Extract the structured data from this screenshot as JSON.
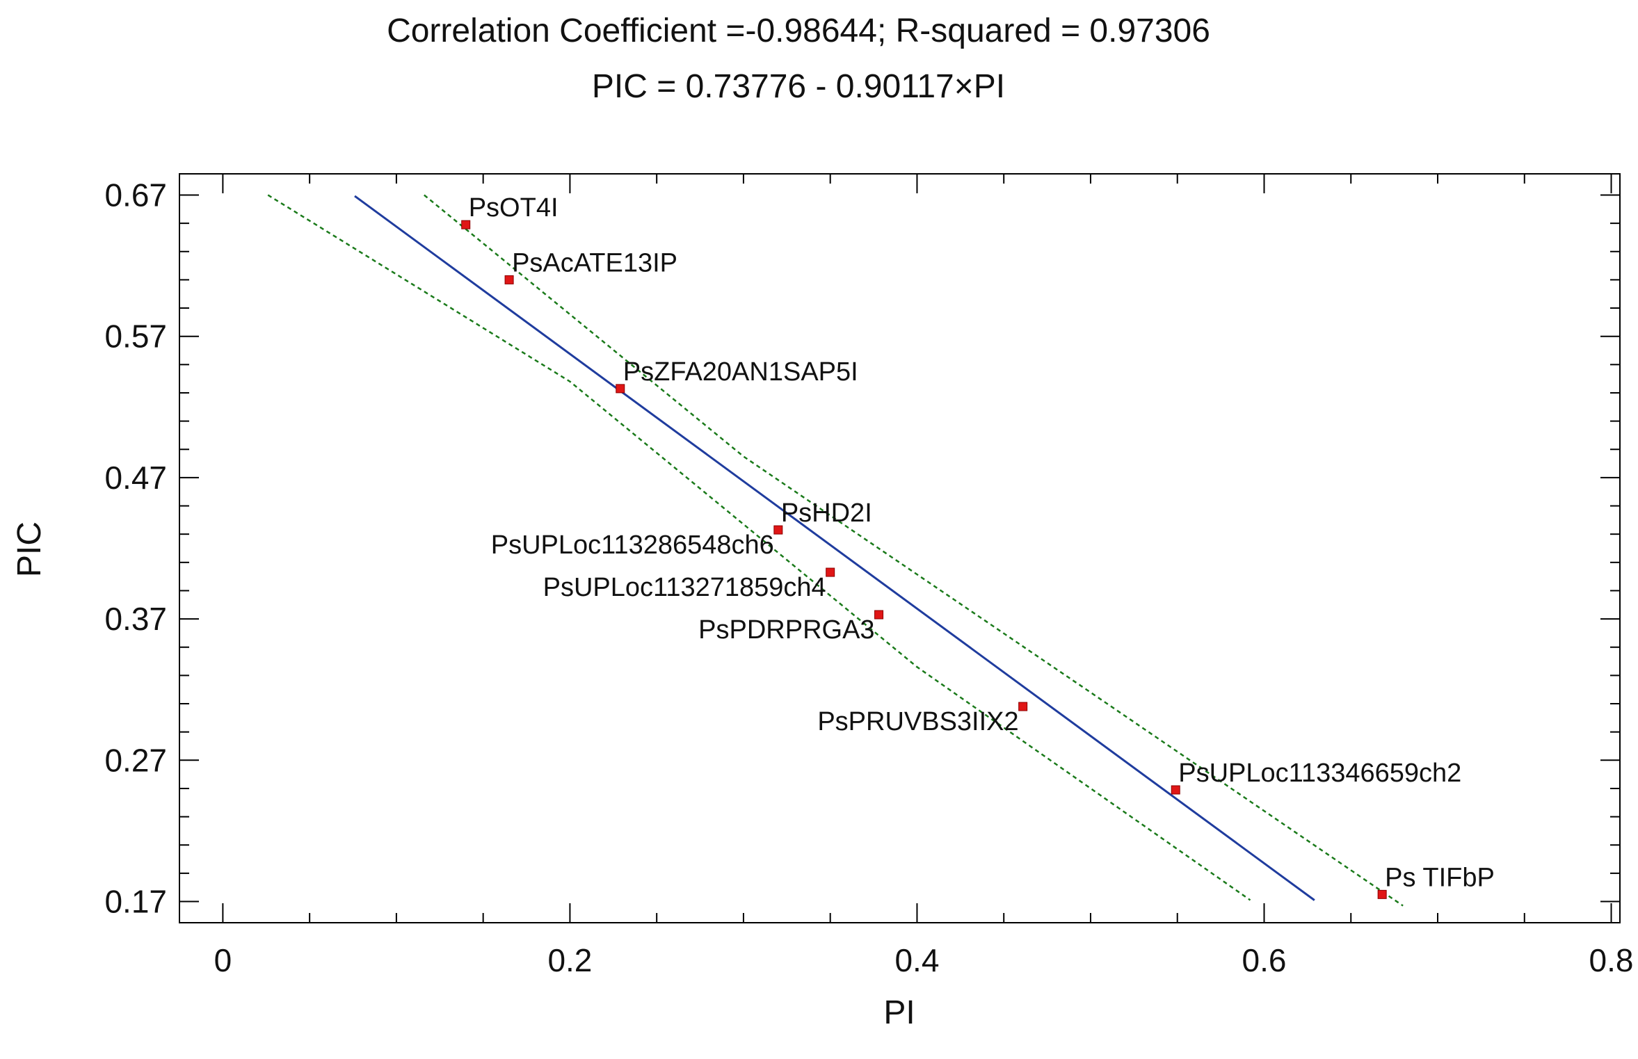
{
  "chart_data": {
    "type": "scatter",
    "title": "Correlation Coefficient =-0.98644; R-squared = 0.97306",
    "subtitle": "PIC = 0.73776 - 0.90117×PI",
    "xlabel": "PI",
    "ylabel": "PIC",
    "xlim": [
      -0.025,
      0.805
    ],
    "ylim": [
      0.155,
      0.685
    ],
    "xticks": [
      {
        "value": 0,
        "label": "0"
      },
      {
        "value": 0.2,
        "label": "0.2"
      },
      {
        "value": 0.4,
        "label": "0.4"
      },
      {
        "value": 0.6,
        "label": "0.6"
      },
      {
        "value": 0.8,
        "label": "0.8"
      }
    ],
    "yticks": [
      {
        "value": 0.17,
        "label": "0.17"
      },
      {
        "value": 0.27,
        "label": "0.27"
      },
      {
        "value": 0.37,
        "label": "0.37"
      },
      {
        "value": 0.47,
        "label": "0.47"
      },
      {
        "value": 0.57,
        "label": "0.57"
      },
      {
        "value": 0.67,
        "label": "0.67"
      }
    ],
    "x_minor_step": 0.05,
    "y_minor_step": 0.02,
    "grid": false,
    "points": [
      {
        "label": "PsOT4I",
        "x": 0.14,
        "y": 0.649,
        "label_pos": "above-right"
      },
      {
        "label": "PsAcATE13IP",
        "x": 0.165,
        "y": 0.61,
        "label_pos": "above-right"
      },
      {
        "label": "PsZFA20AN1SAP5I",
        "x": 0.229,
        "y": 0.533,
        "label_pos": "above-right"
      },
      {
        "label": "PsHD2I",
        "x": 0.32,
        "y": 0.433,
        "label_pos": "above-right"
      },
      {
        "label": "PsUPLoc113286548ch6",
        "x": 0.32,
        "y": 0.433,
        "label_pos": "below-left"
      },
      {
        "label": "PsUPLoc113271859ch4",
        "x": 0.35,
        "y": 0.403,
        "label_pos": "below-left"
      },
      {
        "label": "PsPDRPRGA3",
        "x": 0.378,
        "y": 0.373,
        "label_pos": "below-left"
      },
      {
        "label": "PsPRUVBS3IIX2",
        "x": 0.461,
        "y": 0.308,
        "label_pos": "below-left"
      },
      {
        "label": "PsUPLoc113346659ch2",
        "x": 0.549,
        "y": 0.249,
        "label_pos": "above-right"
      },
      {
        "label": "Ps TIFbP",
        "x": 0.668,
        "y": 0.175,
        "label_pos": "above-right"
      }
    ],
    "fit_line": {
      "intercept": 0.73776,
      "slope": -0.90117,
      "x_range": [
        0.076,
        0.629
      ]
    },
    "confidence_bands": {
      "upper": [
        [
          0.116,
          0.67
        ],
        [
          0.3,
          0.485
        ],
        [
          0.5,
          0.318
        ],
        [
          0.68,
          0.167
        ]
      ],
      "lower": [
        [
          0.026,
          0.67
        ],
        [
          0.2,
          0.538
        ],
        [
          0.4,
          0.336
        ],
        [
          0.592,
          0.171
        ]
      ]
    },
    "colors": {
      "point": "#e01616",
      "fit_line": "#1f3c9e",
      "band": "#1a7a1a",
      "axis": "#000000"
    }
  }
}
